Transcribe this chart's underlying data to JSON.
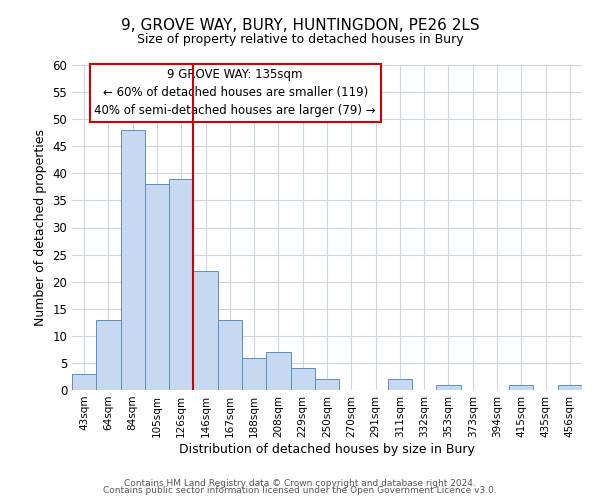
{
  "title": "9, GROVE WAY, BURY, HUNTINGDON, PE26 2LS",
  "subtitle": "Size of property relative to detached houses in Bury",
  "xlabel": "Distribution of detached houses by size in Bury",
  "ylabel": "Number of detached properties",
  "bin_labels": [
    "43sqm",
    "64sqm",
    "84sqm",
    "105sqm",
    "126sqm",
    "146sqm",
    "167sqm",
    "188sqm",
    "208sqm",
    "229sqm",
    "250sqm",
    "270sqm",
    "291sqm",
    "311sqm",
    "332sqm",
    "353sqm",
    "373sqm",
    "394sqm",
    "415sqm",
    "435sqm",
    "456sqm"
  ],
  "bar_values": [
    3,
    13,
    48,
    38,
    39,
    22,
    13,
    6,
    7,
    4,
    2,
    0,
    0,
    2,
    0,
    1,
    0,
    0,
    1,
    0,
    1
  ],
  "bar_color": "#c6d9f0",
  "bar_edge_color": "#5a8fc3",
  "vline_color": "#cc0000",
  "vline_pos": 4.5,
  "ylim": [
    0,
    60
  ],
  "yticks": [
    0,
    5,
    10,
    15,
    20,
    25,
    30,
    35,
    40,
    45,
    50,
    55,
    60
  ],
  "annotation_title": "9 GROVE WAY: 135sqm",
  "annotation_line1": "← 60% of detached houses are smaller (119)",
  "annotation_line2": "40% of semi-detached houses are larger (79) →",
  "annotation_box_color": "#cc0000",
  "footer_line1": "Contains HM Land Registry data © Crown copyright and database right 2024.",
  "footer_line2": "Contains public sector information licensed under the Open Government Licence v3.0.",
  "bg_color": "#ffffff",
  "grid_color": "#ccd6e8"
}
